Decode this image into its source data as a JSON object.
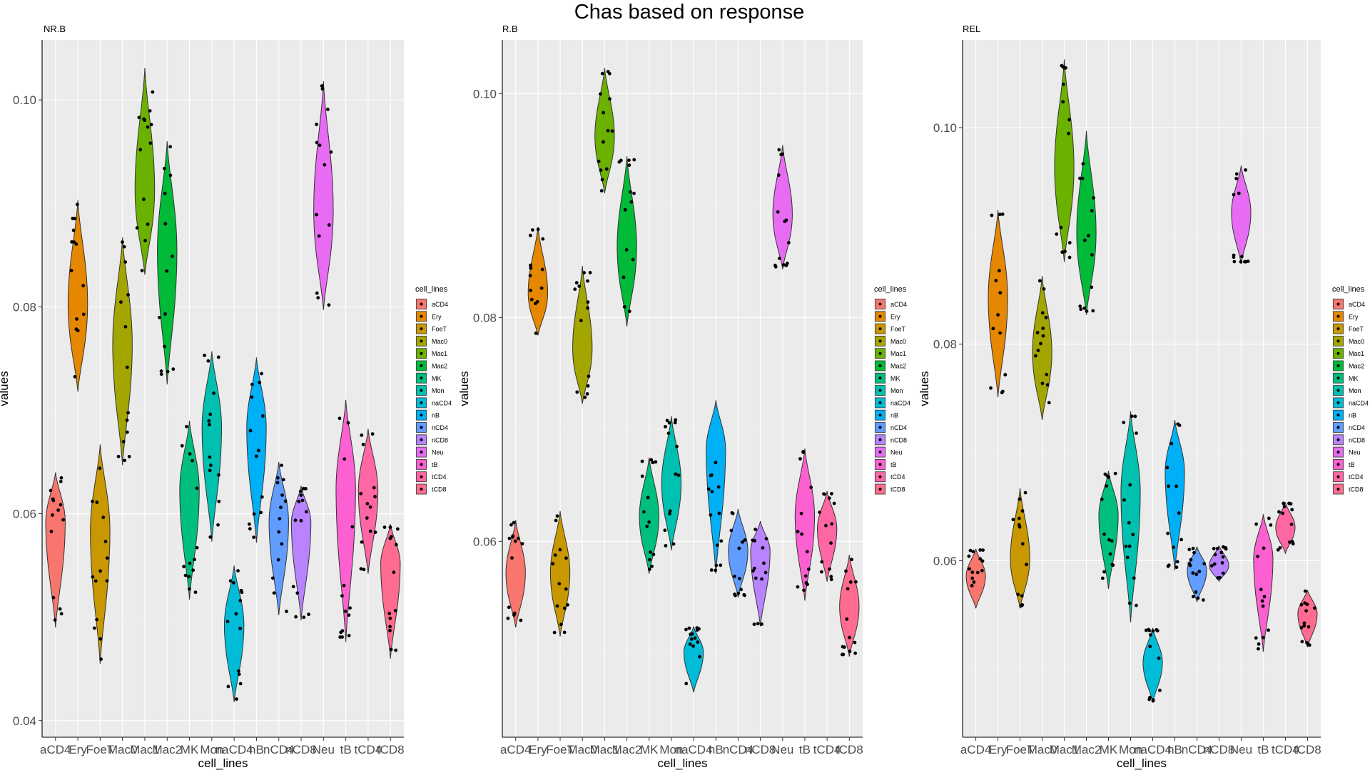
{
  "title": "Chas based on response",
  "chart_data": [
    {
      "type": "violin",
      "title": "NR.B",
      "xlabel": "cell_lines",
      "ylabel": "values",
      "ylim": [
        0.0384,
        0.1058
      ],
      "yticks": [
        0.04,
        0.06,
        0.08,
        0.1
      ],
      "ytick_labels": [
        "0.04",
        "0.06",
        "0.08",
        "0.10"
      ],
      "categories": [
        "aCD4",
        "Ery",
        "FoeT",
        "Mac0",
        "Mac1",
        "Mac2",
        "MK",
        "Mon",
        "naCD4",
        "nB",
        "nCD4",
        "nCD8",
        "Neu",
        "tB",
        "tCD4",
        "tCD8"
      ],
      "series": [
        {
          "category": "aCD4",
          "min": 0.049,
          "max": 0.064,
          "center": 0.059
        },
        {
          "category": "Ery",
          "min": 0.0718,
          "max": 0.0903,
          "center": 0.08
        },
        {
          "category": "FoeT",
          "min": 0.0455,
          "max": 0.0667,
          "center": 0.058
        },
        {
          "category": "Mac0",
          "min": 0.0647,
          "max": 0.0867,
          "center": 0.076
        },
        {
          "category": "Mac1",
          "min": 0.0831,
          "max": 0.1031,
          "center": 0.091
        },
        {
          "category": "Mac2",
          "min": 0.0725,
          "max": 0.096,
          "center": 0.085
        },
        {
          "category": "MK",
          "min": 0.0517,
          "max": 0.069,
          "center": 0.062
        },
        {
          "category": "Mon",
          "min": 0.0573,
          "max": 0.0757,
          "center": 0.068
        },
        {
          "category": "naCD4",
          "min": 0.0418,
          "max": 0.055,
          "center": 0.049
        },
        {
          "category": "nB",
          "min": 0.0572,
          "max": 0.0751,
          "center": 0.068
        },
        {
          "category": "nCD4",
          "min": 0.0502,
          "max": 0.065,
          "center": 0.059
        },
        {
          "category": "nCD8",
          "min": 0.0497,
          "max": 0.0627,
          "center": 0.059
        },
        {
          "category": "Neu",
          "min": 0.0797,
          "max": 0.1018,
          "center": 0.089
        },
        {
          "category": "tB",
          "min": 0.0476,
          "max": 0.071,
          "center": 0.062
        },
        {
          "category": "tCD4",
          "min": 0.0542,
          "max": 0.0682,
          "center": 0.062
        },
        {
          "category": "tCD8",
          "min": 0.046,
          "max": 0.059,
          "center": 0.055
        }
      ],
      "legend": {
        "title": "cell_lines",
        "position": "right"
      }
    },
    {
      "type": "violin",
      "title": "R.B",
      "xlabel": "cell_lines",
      "ylabel": "values",
      "ylim": [
        0.0425,
        0.1048
      ],
      "yticks": [
        0.06,
        0.08,
        0.1
      ],
      "ytick_labels": [
        "0.06",
        "0.08",
        "0.10"
      ],
      "categories": [
        "aCD4",
        "Ery",
        "FoeT",
        "Mac0",
        "Mac1",
        "Mac2",
        "MK",
        "Mon",
        "naCD4",
        "nB",
        "nCD4",
        "nCD8",
        "Neu",
        "tB",
        "tCD4",
        "tCD8"
      ],
      "series": [
        {
          "category": "aCD4",
          "min": 0.0523,
          "max": 0.0619,
          "center": 0.057
        },
        {
          "category": "Ery",
          "min": 0.0784,
          "max": 0.0881,
          "center": 0.082
        },
        {
          "category": "FoeT",
          "min": 0.0515,
          "max": 0.0627,
          "center": 0.057
        },
        {
          "category": "Mac0",
          "min": 0.0723,
          "max": 0.0846,
          "center": 0.077
        },
        {
          "category": "Mac1",
          "min": 0.0911,
          "max": 0.1023,
          "center": 0.096
        },
        {
          "category": "Mac2",
          "min": 0.0792,
          "max": 0.0944,
          "center": 0.086
        },
        {
          "category": "MK",
          "min": 0.0571,
          "max": 0.0675,
          "center": 0.062
        },
        {
          "category": "Mon",
          "min": 0.0592,
          "max": 0.0712,
          "center": 0.065
        },
        {
          "category": "naCD4",
          "min": 0.0465,
          "max": 0.0524,
          "center": 0.05
        },
        {
          "category": "nB",
          "min": 0.0571,
          "max": 0.0726,
          "center": 0.068
        },
        {
          "category": "nCD4",
          "min": 0.055,
          "max": 0.0629,
          "center": 0.059
        },
        {
          "category": "nCD8",
          "min": 0.0524,
          "max": 0.0618,
          "center": 0.059
        },
        {
          "category": "Neu",
          "min": 0.0843,
          "max": 0.0954,
          "center": 0.089
        },
        {
          "category": "tB",
          "min": 0.0547,
          "max": 0.0683,
          "center": 0.062
        },
        {
          "category": "tCD4",
          "min": 0.0564,
          "max": 0.0645,
          "center": 0.061
        },
        {
          "category": "tCD8",
          "min": 0.0497,
          "max": 0.0588,
          "center": 0.054
        }
      ],
      "legend": {
        "title": "cell_lines",
        "position": "right"
      }
    },
    {
      "type": "violin",
      "title": "REL",
      "xlabel": "cell_lines",
      "ylabel": "values",
      "ylim": [
        0.0437,
        0.1081
      ],
      "yticks": [
        0.06,
        0.08,
        0.1
      ],
      "ytick_labels": [
        "0.06",
        "0.08",
        "0.10"
      ],
      "categories": [
        "aCD4",
        "Ery",
        "FoeT",
        "Mac0",
        "Mac1",
        "Mac2",
        "MK",
        "Mon",
        "naCD4",
        "nB",
        "nCD4",
        "nCD8",
        "Neu",
        "tB",
        "tCD4",
        "tCD8"
      ],
      "series": [
        {
          "category": "aCD4",
          "min": 0.0556,
          "max": 0.0611,
          "center": 0.0585
        },
        {
          "category": "Ery",
          "min": 0.0751,
          "max": 0.0924,
          "center": 0.084
        },
        {
          "category": "FoeT",
          "min": 0.0556,
          "max": 0.0667,
          "center": 0.06
        },
        {
          "category": "Mac0",
          "min": 0.073,
          "max": 0.0863,
          "center": 0.079
        },
        {
          "category": "Mac1",
          "min": 0.0876,
          "max": 0.1063,
          "center": 0.096
        },
        {
          "category": "Mac2",
          "min": 0.0827,
          "max": 0.0997,
          "center": 0.09
        },
        {
          "category": "MK",
          "min": 0.0574,
          "max": 0.0683,
          "center": 0.064
        },
        {
          "category": "Mon",
          "min": 0.0543,
          "max": 0.0738,
          "center": 0.066
        },
        {
          "category": "naCD4",
          "min": 0.0469,
          "max": 0.0538,
          "center": 0.0505
        },
        {
          "category": "nB",
          "min": 0.0591,
          "max": 0.073,
          "center": 0.068
        },
        {
          "category": "nCD4",
          "min": 0.0562,
          "max": 0.0613,
          "center": 0.059
        },
        {
          "category": "nCD8",
          "min": 0.0581,
          "max": 0.0614,
          "center": 0.0595
        },
        {
          "category": "Neu",
          "min": 0.0874,
          "max": 0.0965,
          "center": 0.092
        },
        {
          "category": "tB",
          "min": 0.0516,
          "max": 0.0643,
          "center": 0.06
        },
        {
          "category": "tCD4",
          "min": 0.0607,
          "max": 0.0654,
          "center": 0.063
        },
        {
          "category": "tCD8",
          "min": 0.052,
          "max": 0.0573,
          "center": 0.055
        }
      ],
      "legend": {
        "title": "cell_lines",
        "position": "right"
      }
    }
  ],
  "palette": [
    "#F8766D",
    "#E58700",
    "#C99800",
    "#A3A500",
    "#6BB100",
    "#00BA38",
    "#00BF7D",
    "#00C0AF",
    "#00BCD8",
    "#00B0F6",
    "#619CFF",
    "#B983FF",
    "#E76BF3",
    "#FD61D1",
    "#FF67A4",
    "#FF6C90"
  ]
}
